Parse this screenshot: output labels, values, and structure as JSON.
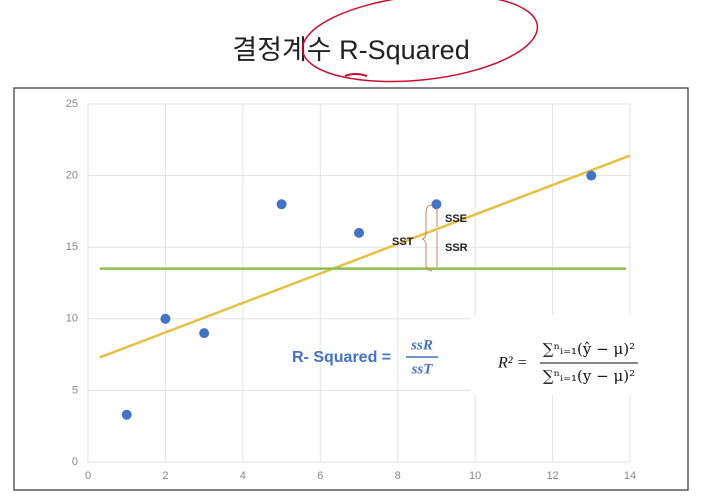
{
  "chart_data": {
    "type": "scatter",
    "title": "결정계수 R-Squared",
    "x": [
      1,
      2,
      3,
      5,
      7,
      9,
      13
    ],
    "values": [
      3.3,
      10,
      9,
      18,
      16,
      18,
      20
    ],
    "color": "#4472c4",
    "lines": [
      {
        "x": [
          0.3,
          14
        ],
        "values": [
          7.3,
          21.4
        ],
        "color": "#e6bf45"
      },
      {
        "x": [
          0.3,
          13.9
        ],
        "values": [
          13.5,
          13.5
        ],
        "color": "#8cc152"
      }
    ],
    "xlim": [
      0,
      14
    ],
    "ylim": [
      0,
      25
    ],
    "xticks": [
      0,
      2,
      4,
      6,
      8,
      10,
      12,
      14
    ],
    "yticks": [
      0,
      5,
      10,
      15,
      20,
      25
    ],
    "grid": true,
    "annotations": {
      "sst": "SST",
      "sse": "SSE",
      "ssr": "SSR",
      "r_squared_label": "R- Squared =",
      "frac_num": "ssR",
      "frac_den": "ssT",
      "formula_lhs": "R² =",
      "formula_num": "∑ⁿᵢ₌₁(ŷ − μ)²",
      "formula_den": "∑ⁿᵢ₌₁(y − μ)²"
    }
  }
}
